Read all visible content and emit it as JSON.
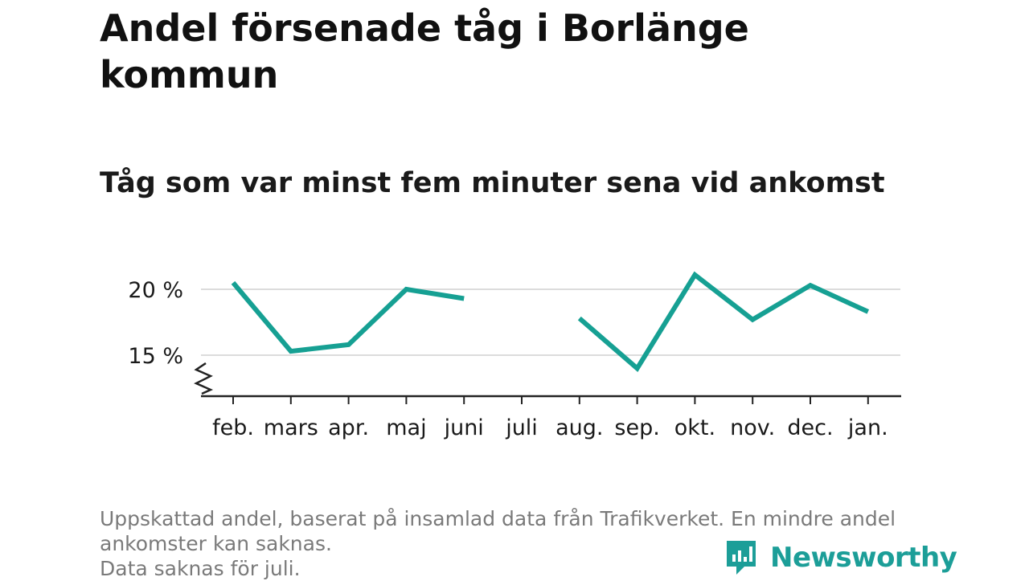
{
  "header": {
    "title": "Andel försenade tåg i Borlänge kommun",
    "subtitle": "Tåg som var minst fem minuter sena vid ankomst"
  },
  "footnote": {
    "line1": "Uppskattad andel, baserat på insamlad data från Trafikverket. En mindre andel",
    "line2": "ankomster kan saknas.",
    "line3": "Data saknas för juli."
  },
  "brand": {
    "name": "Newsworthy",
    "color": "#1c9e98",
    "icon": "newsworthy-logo-icon"
  },
  "chart_data": {
    "type": "line",
    "title": "Andel försenade tåg i Borlänge kommun",
    "subtitle": "Tåg som var minst fem minuter sena vid ankomst",
    "categories": [
      "feb.",
      "mars",
      "apr.",
      "maj",
      "juni",
      "juli",
      "aug.",
      "sep.",
      "okt.",
      "nov.",
      "dec.",
      "jan."
    ],
    "series": [
      {
        "values": [
          20.5,
          15.3,
          15.8,
          20.0,
          19.3,
          null,
          17.8,
          14.0,
          21.1,
          17.7,
          20.3,
          18.3
        ],
        "color": "#16a093"
      }
    ],
    "yticks": [
      15,
      20
    ],
    "ytick_labels": [
      "15 %",
      "20 %"
    ],
    "ylim": [
      12,
      22
    ],
    "axis_break": true,
    "grid": true,
    "legend": "none",
    "xlabel": "",
    "ylabel": ""
  }
}
